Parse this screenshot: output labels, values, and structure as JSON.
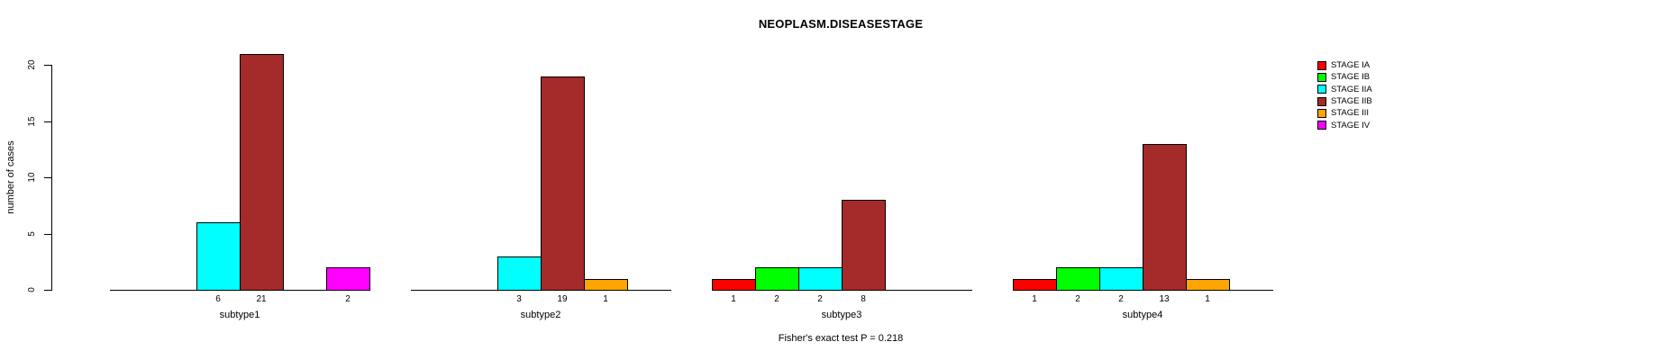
{
  "title": "NEOPLASM.DISEASESTAGE",
  "footer": "Fisher's exact test P = 0.218",
  "y_axis": {
    "label": "number of cases",
    "ticks": [
      0,
      5,
      10,
      15,
      20
    ]
  },
  "legend": {
    "items": [
      {
        "label": "STAGE IA",
        "color": "#FF0000"
      },
      {
        "label": "STAGE IB",
        "color": "#00FF00"
      },
      {
        "label": "STAGE IIA",
        "color": "#00FFFF"
      },
      {
        "label": "STAGE IIB",
        "color": "#A52A2A"
      },
      {
        "label": "STAGE III",
        "color": "#FFA500"
      },
      {
        "label": "STAGE IV",
        "color": "#FF00FF"
      }
    ]
  },
  "chart_data": {
    "type": "bar",
    "title": "NEOPLASM.DISEASESTAGE",
    "xlabel": "",
    "ylabel": "number of cases",
    "ylim": [
      0,
      21
    ],
    "yticks": [
      0,
      5,
      10,
      15,
      20
    ],
    "grid": false,
    "legend_position": "top-right",
    "annotation": "Fisher's exact test P = 0.218",
    "categories": [
      "subtype1",
      "subtype2",
      "subtype3",
      "subtype4"
    ],
    "series": [
      {
        "name": "STAGE IA",
        "color": "#FF0000",
        "values": [
          0,
          0,
          1,
          1
        ]
      },
      {
        "name": "STAGE IB",
        "color": "#00FF00",
        "values": [
          0,
          0,
          2,
          2
        ]
      },
      {
        "name": "STAGE IIA",
        "color": "#00FFFF",
        "values": [
          6,
          3,
          2,
          2
        ]
      },
      {
        "name": "STAGE IIB",
        "color": "#A52A2A",
        "values": [
          21,
          19,
          8,
          13
        ]
      },
      {
        "name": "STAGE III",
        "color": "#FFA500",
        "values": [
          0,
          1,
          0,
          1
        ]
      },
      {
        "name": "STAGE IV",
        "color": "#FF00FF",
        "values": [
          2,
          0,
          0,
          0
        ]
      }
    ],
    "bar_value_labels_shown_for_nonzero": true
  }
}
